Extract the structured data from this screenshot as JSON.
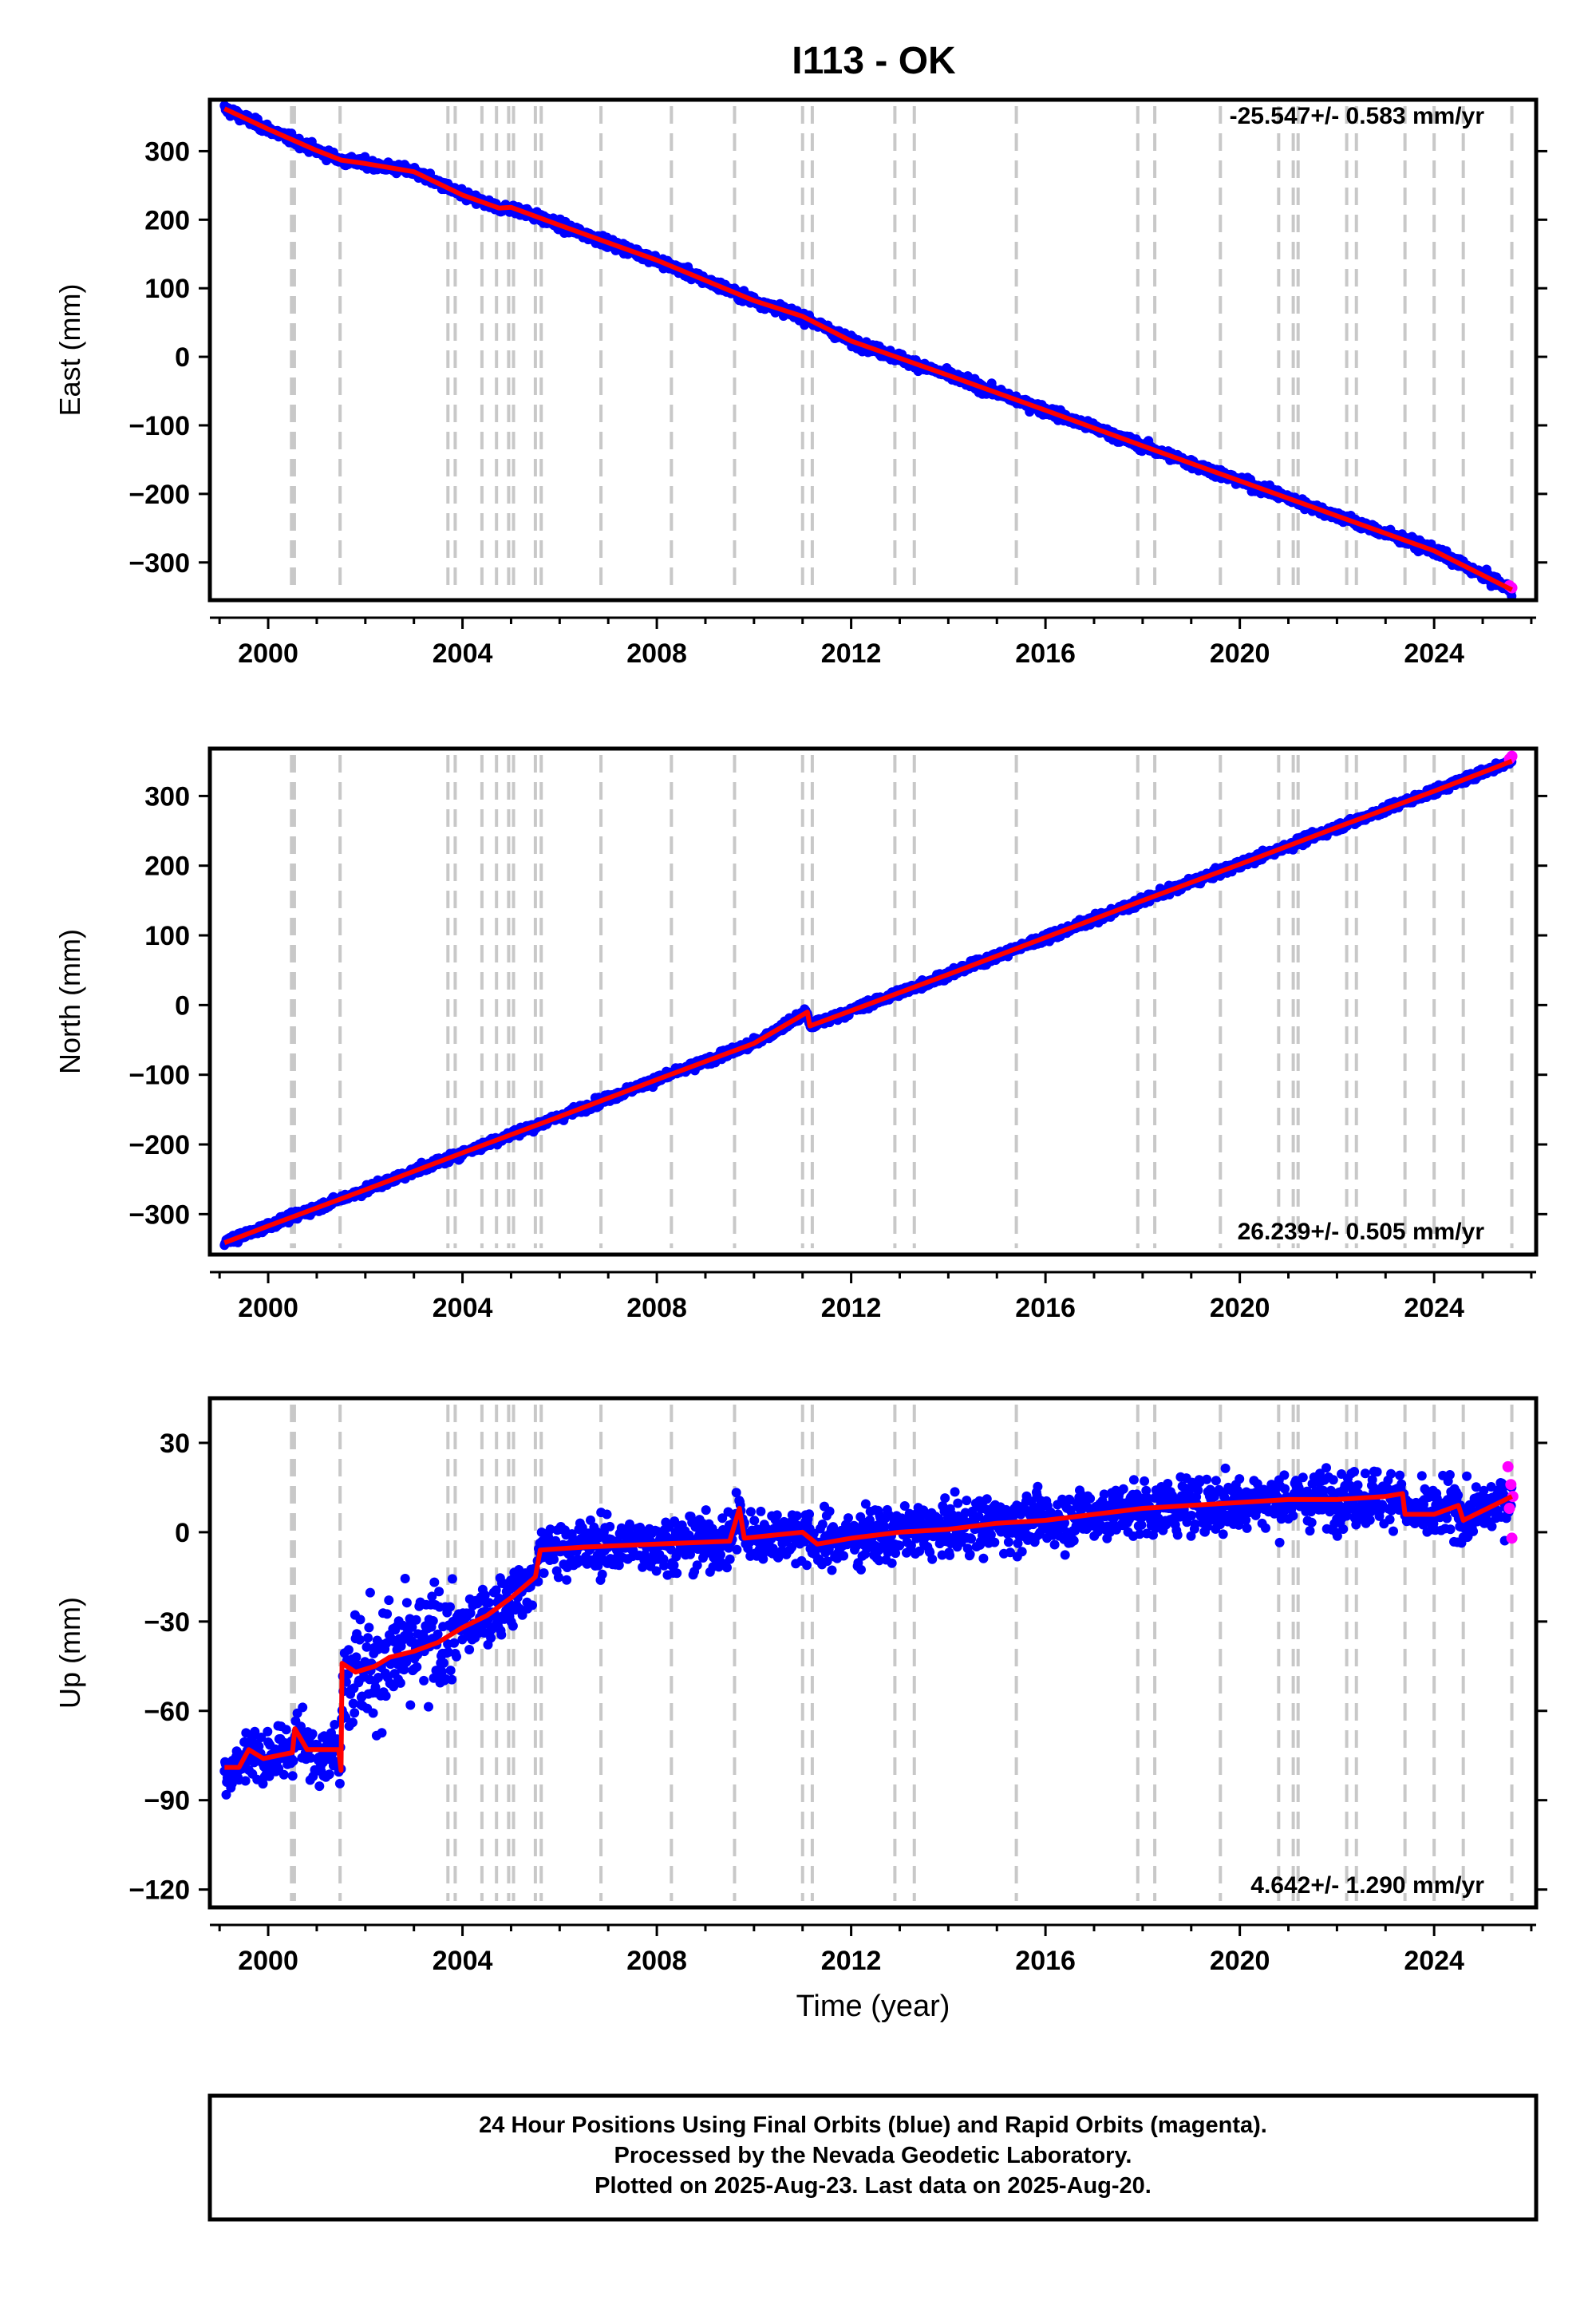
{
  "title": "I113 - OK",
  "footer": {
    "line1": "24 Hour Positions Using Final Orbits (blue) and Rapid Orbits (magenta).",
    "line2": "Processed by the Nevada Geodetic Laboratory.",
    "line3": "Plotted on 2025-Aug-23. Last data on 2025-Aug-20."
  },
  "colors": {
    "final_orbits": "#0000ff",
    "rapid_orbits": "#ff00ff",
    "model_fit": "#ff0000",
    "event_lines": "#c8c8c8"
  },
  "chart_data": [
    {
      "type": "scatter",
      "name": "east",
      "ylabel": "East (mm)",
      "xlabel": "",
      "rate_label": "-25.547+/- 0.583 mm/yr",
      "xlim": [
        1998.8,
        2026.1
      ],
      "ylim": [
        -355,
        375
      ],
      "xticks": [
        2000,
        2004,
        2008,
        2012,
        2016,
        2020,
        2024
      ],
      "yticks": [
        -300,
        -200,
        -100,
        0,
        100,
        200,
        300
      ],
      "ytick_labels": [
        "−300",
        "−200",
        "−100",
        "0",
        "100",
        "200",
        "300"
      ],
      "grid": false,
      "fit_points": [
        [
          1999.1,
          362
        ],
        [
          2000.0,
          332
        ],
        [
          2001.0,
          301
        ],
        [
          2001.5,
          287
        ],
        [
          2002.0,
          282
        ],
        [
          2003.0,
          270
        ],
        [
          2004.0,
          236
        ],
        [
          2004.75,
          217
        ],
        [
          2005.0,
          218
        ],
        [
          2006.0,
          192
        ],
        [
          2008.0,
          141
        ],
        [
          2010.0,
          82
        ],
        [
          2011.0,
          59
        ],
        [
          2012.0,
          23
        ],
        [
          2014.0,
          -27
        ],
        [
          2016.0,
          -78
        ],
        [
          2018.0,
          -130
        ],
        [
          2020.0,
          -181
        ],
        [
          2022.0,
          -232
        ],
        [
          2024.0,
          -283
        ],
        [
          2025.6,
          -340
        ]
      ],
      "noise": 7,
      "rapid_points": [
        [
          2025.55,
          -334
        ],
        [
          2025.6,
          -337
        ]
      ]
    },
    {
      "type": "scatter",
      "name": "north",
      "ylabel": "North (mm)",
      "xlabel": "",
      "rate_label": "26.239+/- 0.505 mm/yr",
      "xlim": [
        1998.8,
        2026.1
      ],
      "ylim": [
        -358,
        368
      ],
      "xticks": [
        2000,
        2004,
        2008,
        2012,
        2016,
        2020,
        2024
      ],
      "yticks": [
        -300,
        -200,
        -100,
        0,
        100,
        200,
        300
      ],
      "ytick_labels": [
        "−300",
        "−200",
        "−100",
        "0",
        "100",
        "200",
        "300"
      ],
      "grid": false,
      "fit_points": [
        [
          1999.1,
          -341
        ],
        [
          2000.0,
          -317
        ],
        [
          2002.0,
          -265
        ],
        [
          2004.0,
          -212
        ],
        [
          2006.0,
          -160
        ],
        [
          2008.0,
          -107
        ],
        [
          2010.0,
          -55
        ],
        [
          2011.1,
          -10
        ],
        [
          2011.15,
          -30
        ],
        [
          2012.0,
          -8
        ],
        [
          2014.0,
          44
        ],
        [
          2016.0,
          97
        ],
        [
          2018.0,
          150
        ],
        [
          2020.0,
          202
        ],
        [
          2022.0,
          255
        ],
        [
          2024.0,
          307
        ],
        [
          2025.6,
          350
        ]
      ],
      "noise": 6,
      "rapid_points": [
        [
          2025.55,
          353
        ],
        [
          2025.6,
          357
        ]
      ]
    },
    {
      "type": "scatter",
      "name": "up",
      "ylabel": "Up (mm)",
      "xlabel": "Time (year)",
      "rate_label": "4.642+/- 1.290 mm/yr",
      "xlim": [
        1998.8,
        2026.1
      ],
      "ylim": [
        -126,
        45
      ],
      "xticks": [
        2000,
        2004,
        2008,
        2012,
        2016,
        2020,
        2024
      ],
      "yticks": [
        -120,
        -90,
        -60,
        -30,
        0,
        30
      ],
      "ytick_labels": [
        "−120",
        "−90",
        "−60",
        "−30",
        "0",
        "30"
      ],
      "grid": false,
      "fit_points": [
        [
          1999.1,
          -79
        ],
        [
          1999.4,
          -79
        ],
        [
          1999.6,
          -73
        ],
        [
          1999.9,
          -76
        ],
        [
          2000.5,
          -74
        ],
        [
          2000.55,
          -66
        ],
        [
          2000.8,
          -73
        ],
        [
          2001.45,
          -73
        ],
        [
          2001.5,
          -80
        ],
        [
          2001.52,
          -44
        ],
        [
          2001.8,
          -47
        ],
        [
          2002.2,
          -45
        ],
        [
          2002.5,
          -42
        ],
        [
          2003.0,
          -40
        ],
        [
          2003.5,
          -37
        ],
        [
          2004.0,
          -32
        ],
        [
          2004.5,
          -28
        ],
        [
          2005.0,
          -22
        ],
        [
          2005.5,
          -15
        ],
        [
          2005.6,
          -6
        ],
        [
          2006.5,
          -5
        ],
        [
          2008.0,
          -4
        ],
        [
          2009.5,
          -3
        ],
        [
          2009.7,
          8
        ],
        [
          2009.8,
          -2
        ],
        [
          2011.0,
          0
        ],
        [
          2011.3,
          -4
        ],
        [
          2012.0,
          -2
        ],
        [
          2013.0,
          0
        ],
        [
          2014.0,
          1
        ],
        [
          2015.0,
          3
        ],
        [
          2016.0,
          4
        ],
        [
          2017.0,
          6
        ],
        [
          2018.0,
          8
        ],
        [
          2019.0,
          9
        ],
        [
          2020.0,
          10
        ],
        [
          2021.0,
          11
        ],
        [
          2022.0,
          11
        ],
        [
          2023.0,
          12
        ],
        [
          2023.35,
          13
        ],
        [
          2023.4,
          6
        ],
        [
          2024.0,
          6
        ],
        [
          2024.5,
          9
        ],
        [
          2024.6,
          4
        ],
        [
          2025.6,
          12
        ]
      ],
      "noise": 9,
      "rapid_points": [
        [
          2025.52,
          22
        ],
        [
          2025.55,
          8
        ],
        [
          2025.58,
          16
        ],
        [
          2025.6,
          -2
        ],
        [
          2025.62,
          12
        ]
      ]
    }
  ],
  "event_years": [
    2000.48,
    2000.54,
    2001.48,
    2003.7,
    2003.85,
    2004.4,
    2004.7,
    2004.95,
    2005.05,
    2005.5,
    2005.62,
    2006.85,
    2008.3,
    2009.6,
    2011.0,
    2011.2,
    2012.9,
    2013.3,
    2015.4,
    2017.9,
    2018.25,
    2019.6,
    2020.8,
    2021.1,
    2021.2,
    2022.2,
    2022.4,
    2023.4,
    2024.0,
    2024.6,
    2025.6
  ]
}
